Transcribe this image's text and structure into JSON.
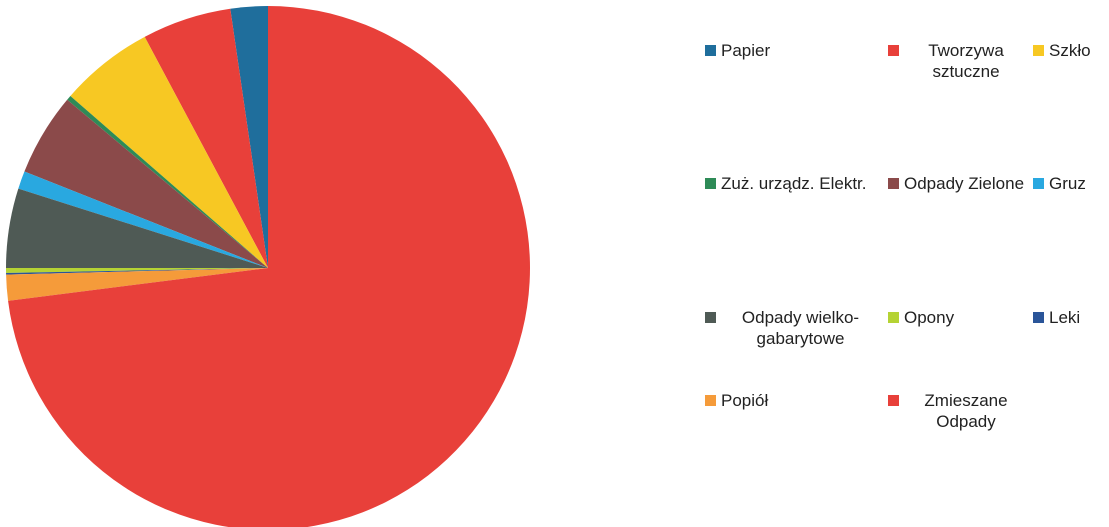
{
  "chart_data": {
    "type": "pie",
    "categories": [
      "Papier",
      "Tworzywa sztuczne",
      "Szkło",
      "Zuż. urządz. Elektr.",
      "Odpady Zielone",
      "Gruz",
      "Odpady wielko-gabarytowe",
      "Opony",
      "Leki",
      "Popiół",
      "Zmieszane Odpady"
    ],
    "values": [
      2.3,
      5.5,
      5.8,
      0.3,
      5.1,
      1.1,
      4.9,
      0.3,
      0.1,
      1.6,
      73.0
    ],
    "colors": [
      "#1f6e9c",
      "#e8403a",
      "#f7c823",
      "#2e8b57",
      "#8b4a4a",
      "#29a8e0",
      "#4f5a55",
      "#b5d334",
      "#2a5599",
      "#f59b3a",
      "#e8403a"
    ],
    "legend": "right"
  }
}
